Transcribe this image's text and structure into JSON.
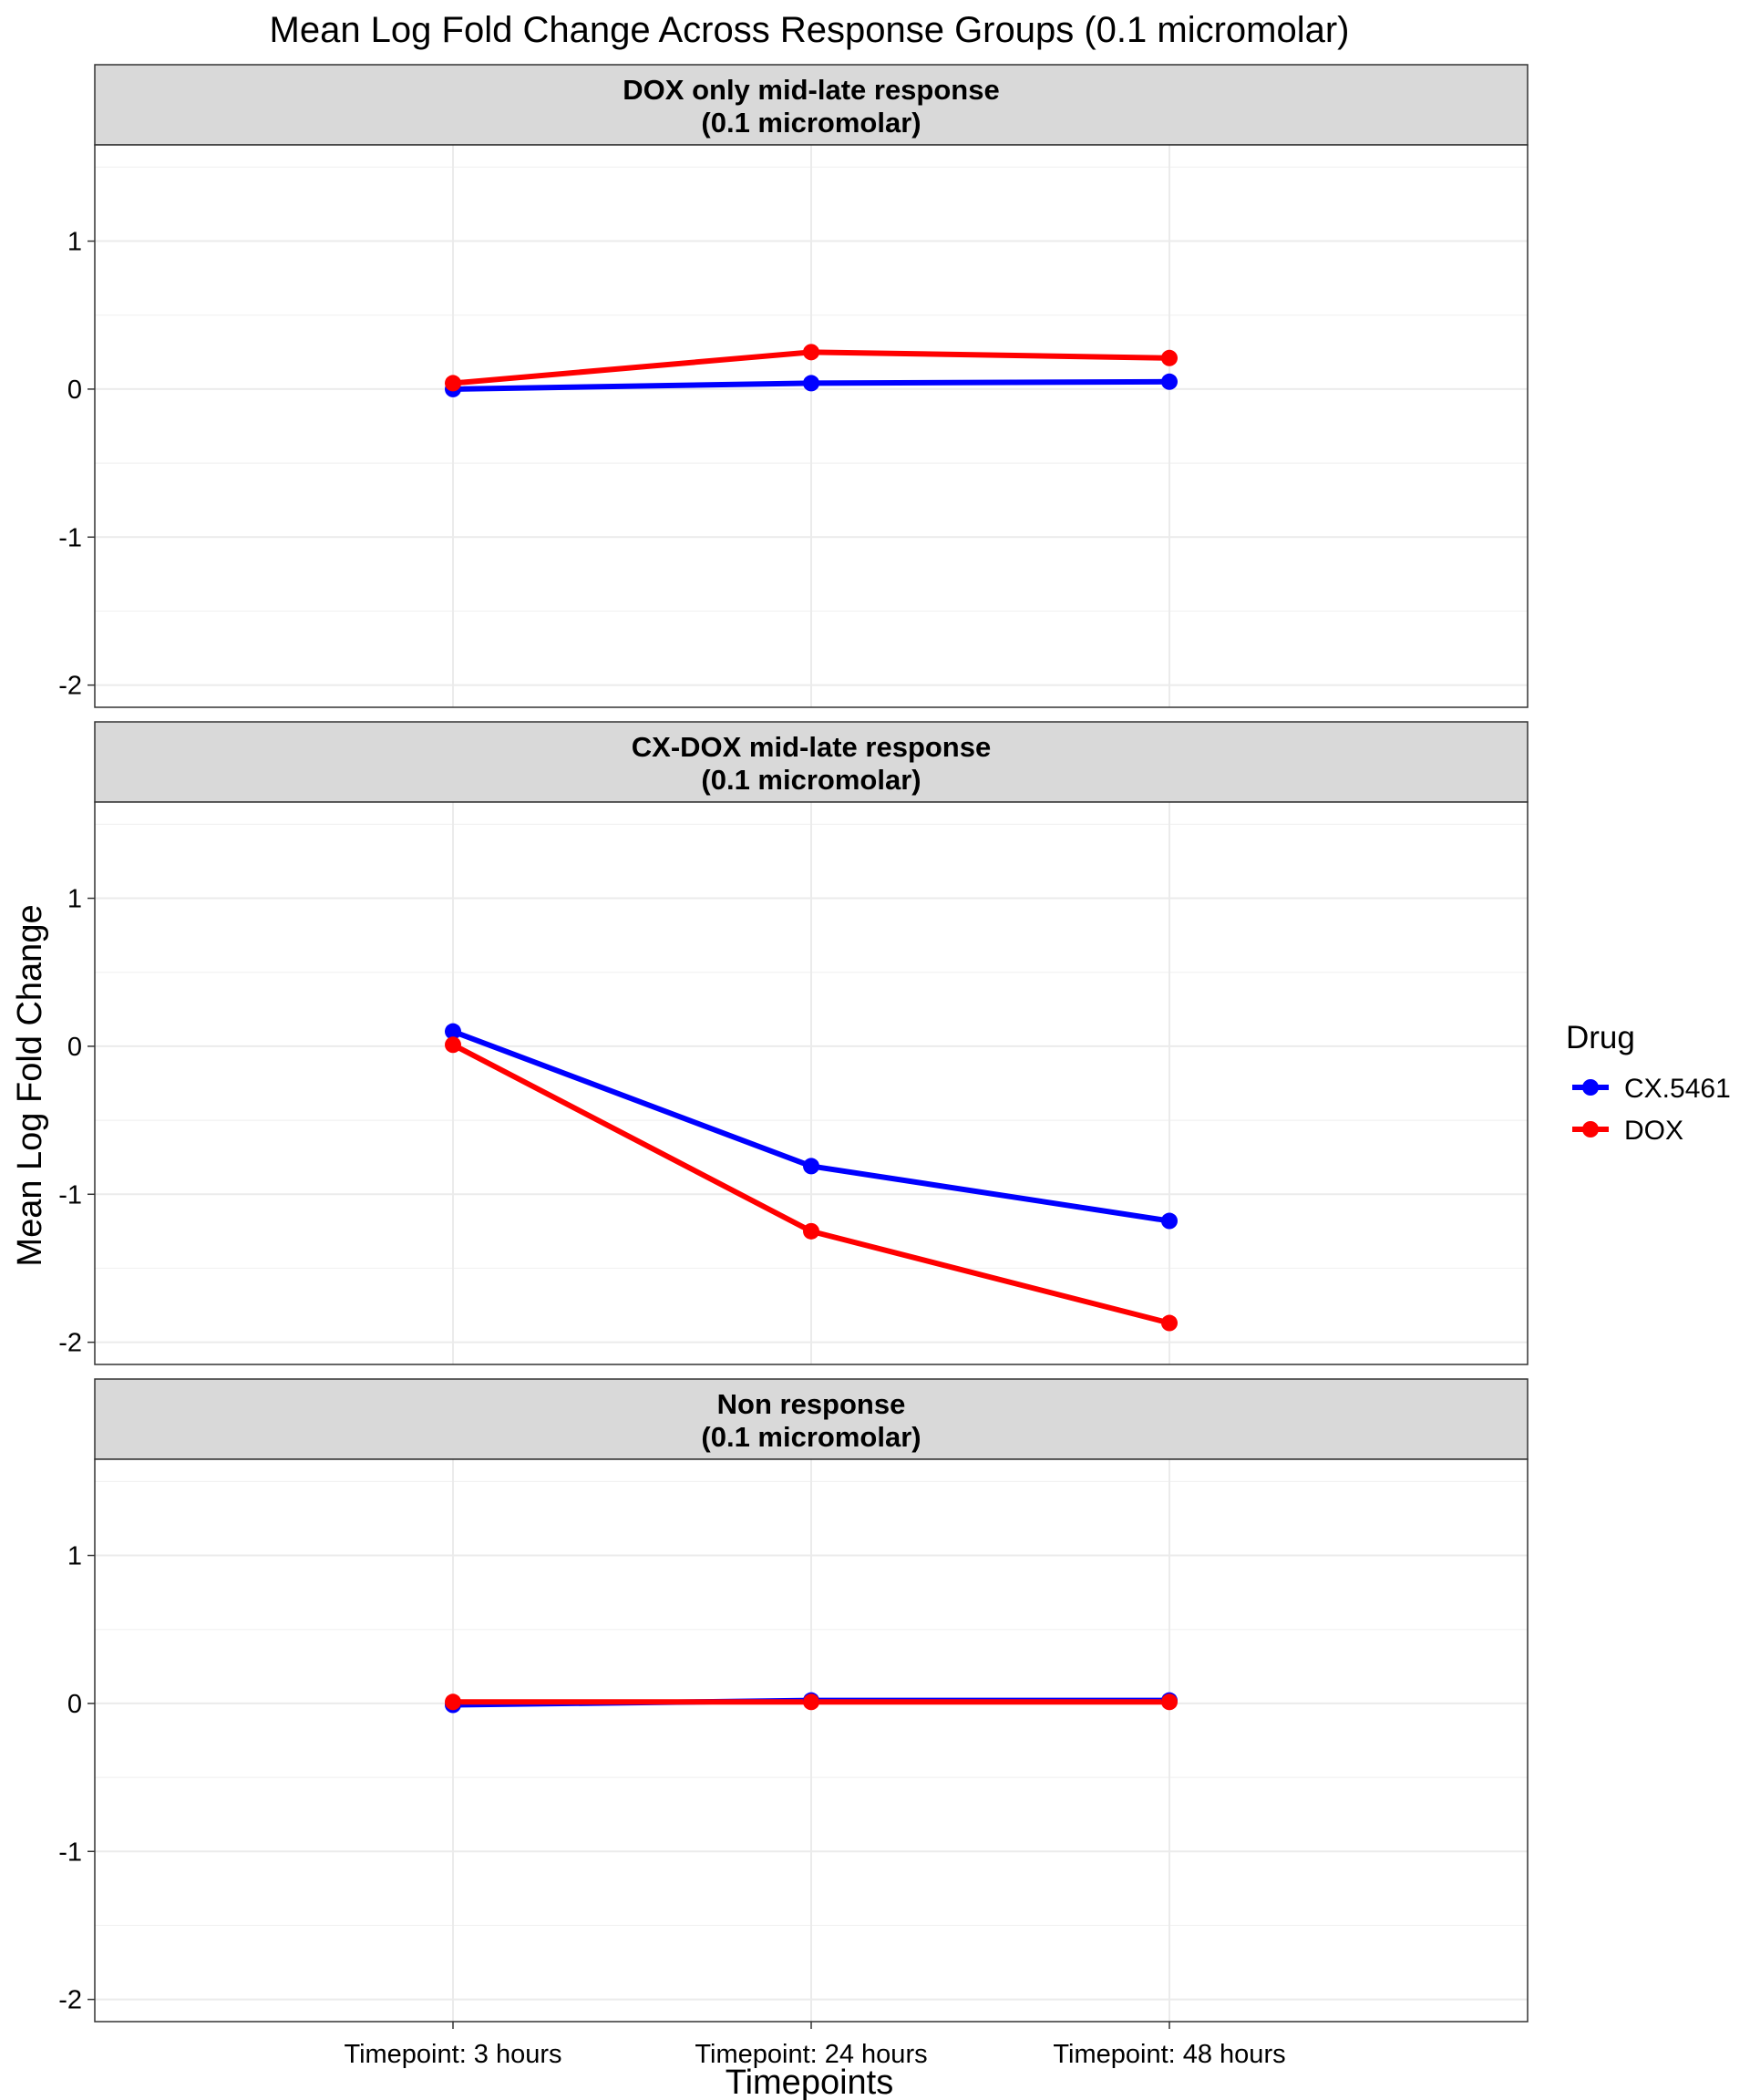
{
  "chart_data": {
    "type": "line",
    "title": "Mean Log Fold Change Across Response Groups (0.1 micromolar)",
    "xlabel": "Timepoints",
    "ylabel": "Mean Log Fold Change",
    "categories": [
      "Timepoint: 3 hours",
      "Timepoint: 24 hours",
      "Timepoint: 48 hours"
    ],
    "ylim": [
      -2.15,
      1.65
    ],
    "yticks": [
      -2,
      -1,
      0,
      1
    ],
    "ytick_labels": [
      "-2",
      "-1",
      "0",
      "1"
    ],
    "grid": true,
    "legend": {
      "title": "Drug",
      "placement": "right",
      "entries": [
        "CX.5461",
        "DOX"
      ]
    },
    "colors": {
      "CX.5461": "#0000FF",
      "DOX": "#FF0000"
    },
    "panels": [
      {
        "strip_line1": "DOX only mid-late response",
        "strip_line2": "(0.1 micromolar)",
        "series": [
          {
            "name": "CX.5461",
            "values": [
              0.0,
              0.04,
              0.05
            ]
          },
          {
            "name": "DOX",
            "values": [
              0.04,
              0.25,
              0.21
            ]
          }
        ]
      },
      {
        "strip_line1": "CX-DOX mid-late response",
        "strip_line2": "(0.1 micromolar)",
        "series": [
          {
            "name": "CX.5461",
            "values": [
              0.1,
              -0.81,
              -1.18
            ]
          },
          {
            "name": "DOX",
            "values": [
              0.01,
              -1.25,
              -1.87
            ]
          }
        ]
      },
      {
        "strip_line1": "Non response",
        "strip_line2": "(0.1 micromolar)",
        "series": [
          {
            "name": "CX.5461",
            "values": [
              -0.01,
              0.02,
              0.02
            ]
          },
          {
            "name": "DOX",
            "values": [
              0.01,
              0.01,
              0.01
            ]
          }
        ]
      }
    ]
  }
}
